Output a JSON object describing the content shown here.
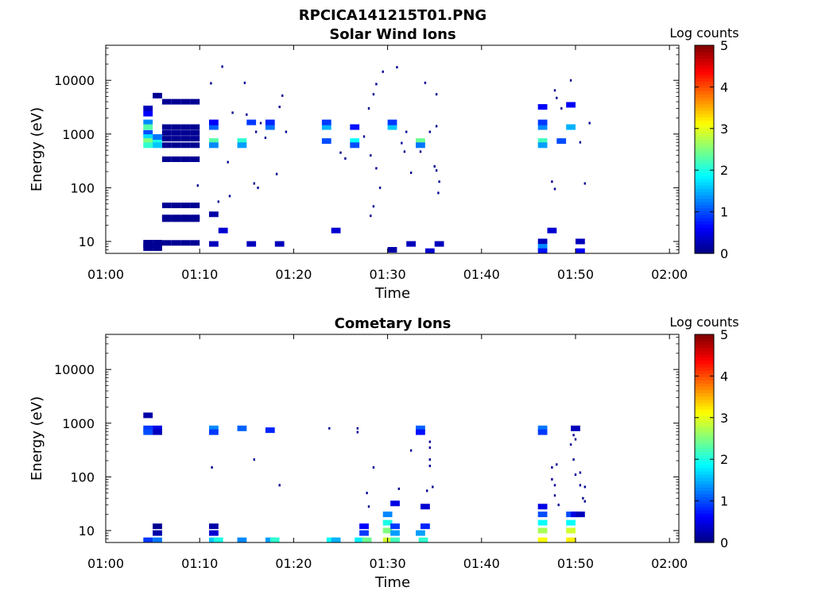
{
  "figure_title": "RPCICA141215T01.PNG",
  "colors": {
    "axis": "#000000",
    "background": "#ffffff",
    "colormap": [
      "#00007f",
      "#0000ff",
      "#007fff",
      "#00ffff",
      "#7fff7f",
      "#ffff00",
      "#ff7f00",
      "#ff0000",
      "#7f0000"
    ]
  },
  "chart_data": [
    {
      "type": "heatmap",
      "title": "Solar Wind Ions",
      "xlabel": "Time",
      "ylabel": "Energy (eV)",
      "xlim_minutes": [
        0,
        61
      ],
      "x_ticks": [
        "01:00",
        "01:10",
        "01:20",
        "01:30",
        "01:40",
        "01:50",
        "02:00"
      ],
      "y_scale": "log",
      "ylim": [
        6,
        45000
      ],
      "y_ticks": [
        "10",
        "100",
        "1000",
        "10000"
      ],
      "colorbar_label": "Log counts",
      "colorbar_range": [
        0,
        5
      ],
      "colorbar_ticks": [
        "0",
        "1",
        "2",
        "3",
        "4",
        "5"
      ],
      "cells": [
        [
          4.5,
          7.5,
          0.1
        ],
        [
          5.5,
          7.5,
          0.1
        ],
        [
          4.5,
          8.5,
          0.1
        ],
        [
          5.5,
          8.5,
          0.1
        ],
        [
          4.5,
          9.5,
          0.1
        ],
        [
          5.5,
          9.5,
          0.1
        ],
        [
          6.5,
          9.4,
          0.1
        ],
        [
          7.5,
          9.4,
          0.1
        ],
        [
          8.5,
          9.4,
          0.1
        ],
        [
          9.5,
          9.4,
          0.1
        ],
        [
          6.5,
          26,
          0.1
        ],
        [
          7.5,
          26,
          0.1
        ],
        [
          8.5,
          26,
          0.1
        ],
        [
          9.5,
          26,
          0.1
        ],
        [
          6.5,
          28,
          0.1
        ],
        [
          7.5,
          28,
          0.1
        ],
        [
          8.5,
          28,
          0.1
        ],
        [
          9.5,
          28,
          0.1
        ],
        [
          6.5,
          47,
          0.1
        ],
        [
          7.5,
          47,
          0.1
        ],
        [
          8.5,
          47,
          0.1
        ],
        [
          9.5,
          47,
          0.1
        ],
        [
          6.5,
          340,
          0.1
        ],
        [
          7.5,
          340,
          0.1
        ],
        [
          8.5,
          340,
          0.1
        ],
        [
          9.5,
          340,
          0.1
        ],
        [
          6.5,
          620,
          0.1
        ],
        [
          7.5,
          620,
          0.1
        ],
        [
          8.5,
          620,
          0.1
        ],
        [
          9.5,
          620,
          0.1
        ],
        [
          6.5,
          820,
          0.1
        ],
        [
          7.5,
          820,
          0.1
        ],
        [
          8.5,
          820,
          0.1
        ],
        [
          9.5,
          820,
          0.1
        ],
        [
          6.5,
          1050,
          0.1
        ],
        [
          7.5,
          1050,
          0.1
        ],
        [
          8.5,
          1050,
          0.1
        ],
        [
          9.5,
          1050,
          0.1
        ],
        [
          6.5,
          1350,
          0.1
        ],
        [
          7.5,
          1350,
          0.1
        ],
        [
          8.5,
          1350,
          0.1
        ],
        [
          9.5,
          1350,
          0.1
        ],
        [
          6.5,
          4000,
          0.1
        ],
        [
          7.5,
          4000,
          0.1
        ],
        [
          8.5,
          4000,
          0.1
        ],
        [
          9.5,
          4000,
          0.1
        ],
        [
          5.5,
          5200,
          0.1
        ],
        [
          4.5,
          3000,
          0.3
        ],
        [
          4.5,
          2400,
          0.6
        ],
        [
          4.5,
          1650,
          1.3
        ],
        [
          4.5,
          1350,
          2.3
        ],
        [
          4.5,
          1050,
          1.0
        ],
        [
          4.5,
          880,
          1.7
        ],
        [
          4.5,
          740,
          2.5
        ],
        [
          4.5,
          620,
          2.1
        ],
        [
          5.5,
          740,
          2.0
        ],
        [
          5.5,
          620,
          1.6
        ],
        [
          5.5,
          880,
          1.2
        ],
        [
          11.5,
          1350,
          1.1
        ],
        [
          11.5,
          1650,
          0.6
        ],
        [
          11.5,
          740,
          2.3
        ],
        [
          11.5,
          620,
          1.3
        ],
        [
          11.5,
          32,
          0.2
        ],
        [
          11.5,
          9,
          0.3
        ],
        [
          12.5,
          16,
          0.4
        ],
        [
          14.5,
          740,
          2.1
        ],
        [
          14.5,
          620,
          1.4
        ],
        [
          15.5,
          1650,
          0.9
        ],
        [
          15.5,
          9,
          0.3
        ],
        [
          17.5,
          1350,
          1.2
        ],
        [
          17.5,
          1650,
          0.8
        ],
        [
          18.5,
          9,
          0.3
        ],
        [
          23.5,
          1350,
          1.5
        ],
        [
          23.5,
          1650,
          0.9
        ],
        [
          23.5,
          740,
          1.0
        ],
        [
          24.5,
          16,
          0.4
        ],
        [
          26.5,
          740,
          1.9
        ],
        [
          26.5,
          620,
          1.0
        ],
        [
          26.5,
          1350,
          0.7
        ],
        [
          30.5,
          1350,
          1.6
        ],
        [
          30.5,
          1650,
          0.9
        ],
        [
          30.5,
          7,
          0.2
        ],
        [
          33.5,
          740,
          2.4
        ],
        [
          33.5,
          620,
          1.2
        ],
        [
          32.5,
          9,
          0.3
        ],
        [
          34.5,
          6.6,
          0.4
        ],
        [
          35.5,
          9,
          0.3
        ],
        [
          46.5,
          1350,
          1.3
        ],
        [
          46.5,
          1650,
          0.9
        ],
        [
          46.5,
          3200,
          0.6
        ],
        [
          46.5,
          740,
          2.2
        ],
        [
          46.5,
          620,
          1.4
        ],
        [
          46.5,
          10,
          0.3
        ],
        [
          46.5,
          8,
          1.3
        ],
        [
          46.5,
          6.6,
          0.7
        ],
        [
          47.5,
          16,
          0.4
        ],
        [
          49.5,
          1350,
          1.5
        ],
        [
          48.5,
          740,
          1.0
        ],
        [
          49.5,
          3500,
          0.6
        ],
        [
          50.5,
          10,
          0.3
        ],
        [
          50.5,
          6.6,
          0.6
        ]
      ],
      "points": [
        [
          9.8,
          110
        ],
        [
          11.2,
          8800
        ],
        [
          12.4,
          18000
        ],
        [
          12.0,
          55
        ],
        [
          13.0,
          300
        ],
        [
          13.2,
          70
        ],
        [
          14.8,
          9000
        ],
        [
          13.5,
          2500
        ],
        [
          15.0,
          2300
        ],
        [
          16.0,
          1100
        ],
        [
          16.5,
          1600
        ],
        [
          15.8,
          120
        ],
        [
          16.2,
          100
        ],
        [
          17.0,
          850
        ],
        [
          18.2,
          180
        ],
        [
          18.8,
          5200
        ],
        [
          18.5,
          3200
        ],
        [
          19.2,
          1100
        ],
        [
          25.0,
          450
        ],
        [
          25.5,
          350
        ],
        [
          27.5,
          900
        ],
        [
          28.2,
          400
        ],
        [
          28.5,
          5500
        ],
        [
          28.0,
          3000
        ],
        [
          28.8,
          8500
        ],
        [
          29.5,
          14500
        ],
        [
          28.8,
          230
        ],
        [
          29.2,
          100
        ],
        [
          28.5,
          45
        ],
        [
          28.2,
          30
        ],
        [
          31.0,
          17500
        ],
        [
          31.5,
          680
        ],
        [
          32.0,
          1100
        ],
        [
          31.8,
          470
        ],
        [
          32.5,
          190
        ],
        [
          33.5,
          470
        ],
        [
          34.0,
          9000
        ],
        [
          34.5,
          1100
        ],
        [
          35.2,
          1400
        ],
        [
          35.0,
          250
        ],
        [
          35.5,
          130
        ],
        [
          35.2,
          210
        ],
        [
          35.2,
          5500
        ],
        [
          35.4,
          80
        ],
        [
          47.5,
          130
        ],
        [
          47.8,
          95
        ],
        [
          47.8,
          6500
        ],
        [
          48.0,
          4700
        ],
        [
          49.5,
          10000
        ],
        [
          50.5,
          700
        ],
        [
          51.0,
          120
        ],
        [
          51.5,
          1600
        ],
        [
          48.5,
          3000
        ]
      ]
    },
    {
      "type": "heatmap",
      "title": "Cometary Ions",
      "xlabel": "Time",
      "ylabel": "Energy (eV)",
      "xlim_minutes": [
        0,
        61
      ],
      "x_ticks": [
        "01:00",
        "01:10",
        "01:20",
        "01:30",
        "01:40",
        "01:50",
        "02:00"
      ],
      "y_scale": "log",
      "ylim": [
        6,
        45000
      ],
      "y_ticks": [
        "10",
        "100",
        "1000",
        "10000"
      ],
      "colorbar_label": "Log counts",
      "colorbar_range": [
        0,
        5
      ],
      "colorbar_ticks": [
        "0",
        "1",
        "2",
        "3",
        "4",
        "5"
      ],
      "cells": [
        [
          4.5,
          1400,
          0.2
        ],
        [
          4.5,
          800,
          0.9
        ],
        [
          4.5,
          680,
          1.0
        ],
        [
          5.5,
          800,
          0.5
        ],
        [
          5.5,
          680,
          0.3
        ],
        [
          5.5,
          12,
          0.1
        ],
        [
          5.5,
          9,
          0.2
        ],
        [
          4.5,
          6.6,
          0.9
        ],
        [
          5.5,
          6.6,
          1.2
        ],
        [
          11.5,
          800,
          1.3
        ],
        [
          11.5,
          680,
          0.9
        ],
        [
          11.5,
          12,
          0.2
        ],
        [
          11.5,
          9,
          0.4
        ],
        [
          11.5,
          6.6,
          1.6
        ],
        [
          12.0,
          6.6,
          2.0
        ],
        [
          14.5,
          800,
          1.1
        ],
        [
          14.5,
          6.6,
          1.3
        ],
        [
          17.5,
          740,
          0.8
        ],
        [
          17.5,
          6.6,
          1.4
        ],
        [
          18.0,
          6.6,
          2.1
        ],
        [
          24.0,
          6.6,
          1.9
        ],
        [
          24.5,
          6.6,
          1.5
        ],
        [
          27.5,
          12,
          0.6
        ],
        [
          27.5,
          9,
          0.9
        ],
        [
          27.0,
          6.6,
          1.8
        ],
        [
          27.8,
          6.6,
          2.4
        ],
        [
          30.0,
          20,
          1.3
        ],
        [
          30.0,
          14,
          2.0
        ],
        [
          30.0,
          10,
          2.5
        ],
        [
          30.0,
          6.6,
          2.9
        ],
        [
          30.8,
          32,
          0.5
        ],
        [
          30.8,
          12,
          0.9
        ],
        [
          30.8,
          9,
          1.4
        ],
        [
          30.8,
          6.6,
          2.2
        ],
        [
          33.5,
          800,
          1.1
        ],
        [
          33.5,
          680,
          0.7
        ],
        [
          34.0,
          28,
          0.4
        ],
        [
          34.0,
          12,
          0.8
        ],
        [
          33.8,
          6.6,
          2.1
        ],
        [
          33.5,
          9,
          1.4
        ],
        [
          46.5,
          800,
          1.2
        ],
        [
          46.5,
          680,
          0.9
        ],
        [
          46.5,
          28,
          0.5
        ],
        [
          46.5,
          20,
          1.0
        ],
        [
          46.5,
          14,
          1.9
        ],
        [
          46.5,
          10,
          2.7
        ],
        [
          46.5,
          6.6,
          3.1
        ],
        [
          49.5,
          20,
          1.0
        ],
        [
          49.5,
          14,
          1.9
        ],
        [
          49.5,
          10,
          2.9
        ],
        [
          49.5,
          6.6,
          3.2
        ],
        [
          50.0,
          800,
          0.3
        ],
        [
          50.0,
          20,
          0.5
        ],
        [
          50.5,
          20,
          0.3
        ]
      ],
      "points": [
        [
          11.3,
          150
        ],
        [
          15.8,
          210
        ],
        [
          18.5,
          70
        ],
        [
          23.8,
          800
        ],
        [
          26.8,
          680
        ],
        [
          26.8,
          800
        ],
        [
          27.8,
          50
        ],
        [
          28.0,
          28
        ],
        [
          28.5,
          150
        ],
        [
          31.2,
          60
        ],
        [
          32.5,
          310
        ],
        [
          34.5,
          210
        ],
        [
          34.5,
          160
        ],
        [
          34.5,
          350
        ],
        [
          34.5,
          450
        ],
        [
          34.8,
          65
        ],
        [
          34.2,
          55
        ],
        [
          47.5,
          150
        ],
        [
          47.5,
          90
        ],
        [
          47.8,
          70
        ],
        [
          48.0,
          170
        ],
        [
          47.8,
          45
        ],
        [
          48.2,
          30
        ],
        [
          49.5,
          400
        ],
        [
          49.8,
          600
        ],
        [
          50.0,
          500
        ],
        [
          49.8,
          210
        ],
        [
          50.0,
          110
        ],
        [
          50.5,
          70
        ],
        [
          51.0,
          65
        ],
        [
          50.8,
          40
        ],
        [
          51.0,
          35
        ],
        [
          50.5,
          120
        ]
      ]
    }
  ]
}
